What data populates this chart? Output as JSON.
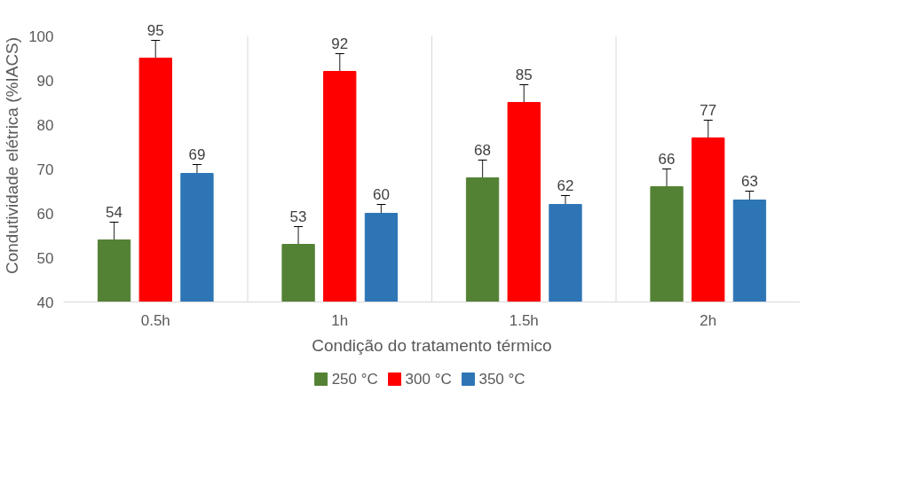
{
  "chart_data": {
    "type": "bar",
    "xlabel": "Condição do tratamento térmico",
    "ylabel": "Condutividade elétrica (%IACS)",
    "categories": [
      "0.5h",
      "1h",
      "1.5h",
      "2h"
    ],
    "series": [
      {
        "name": "250 °C",
        "color": "#548235",
        "values": [
          54,
          53,
          68,
          66
        ],
        "errors": [
          4,
          4,
          4,
          4
        ]
      },
      {
        "name": "300 °C",
        "color": "#ff0000",
        "values": [
          95,
          92,
          85,
          77
        ],
        "errors": [
          4,
          4,
          4,
          4
        ]
      },
      {
        "name": "350 °C",
        "color": "#2e75b6",
        "values": [
          69,
          60,
          62,
          63
        ],
        "errors": [
          2,
          2,
          2,
          2
        ]
      }
    ],
    "ylim": [
      40,
      100
    ],
    "yticks": [
      40,
      50,
      60,
      70,
      80,
      90,
      100
    ],
    "grid": "x",
    "legend": "bottom",
    "data_labels": true
  }
}
